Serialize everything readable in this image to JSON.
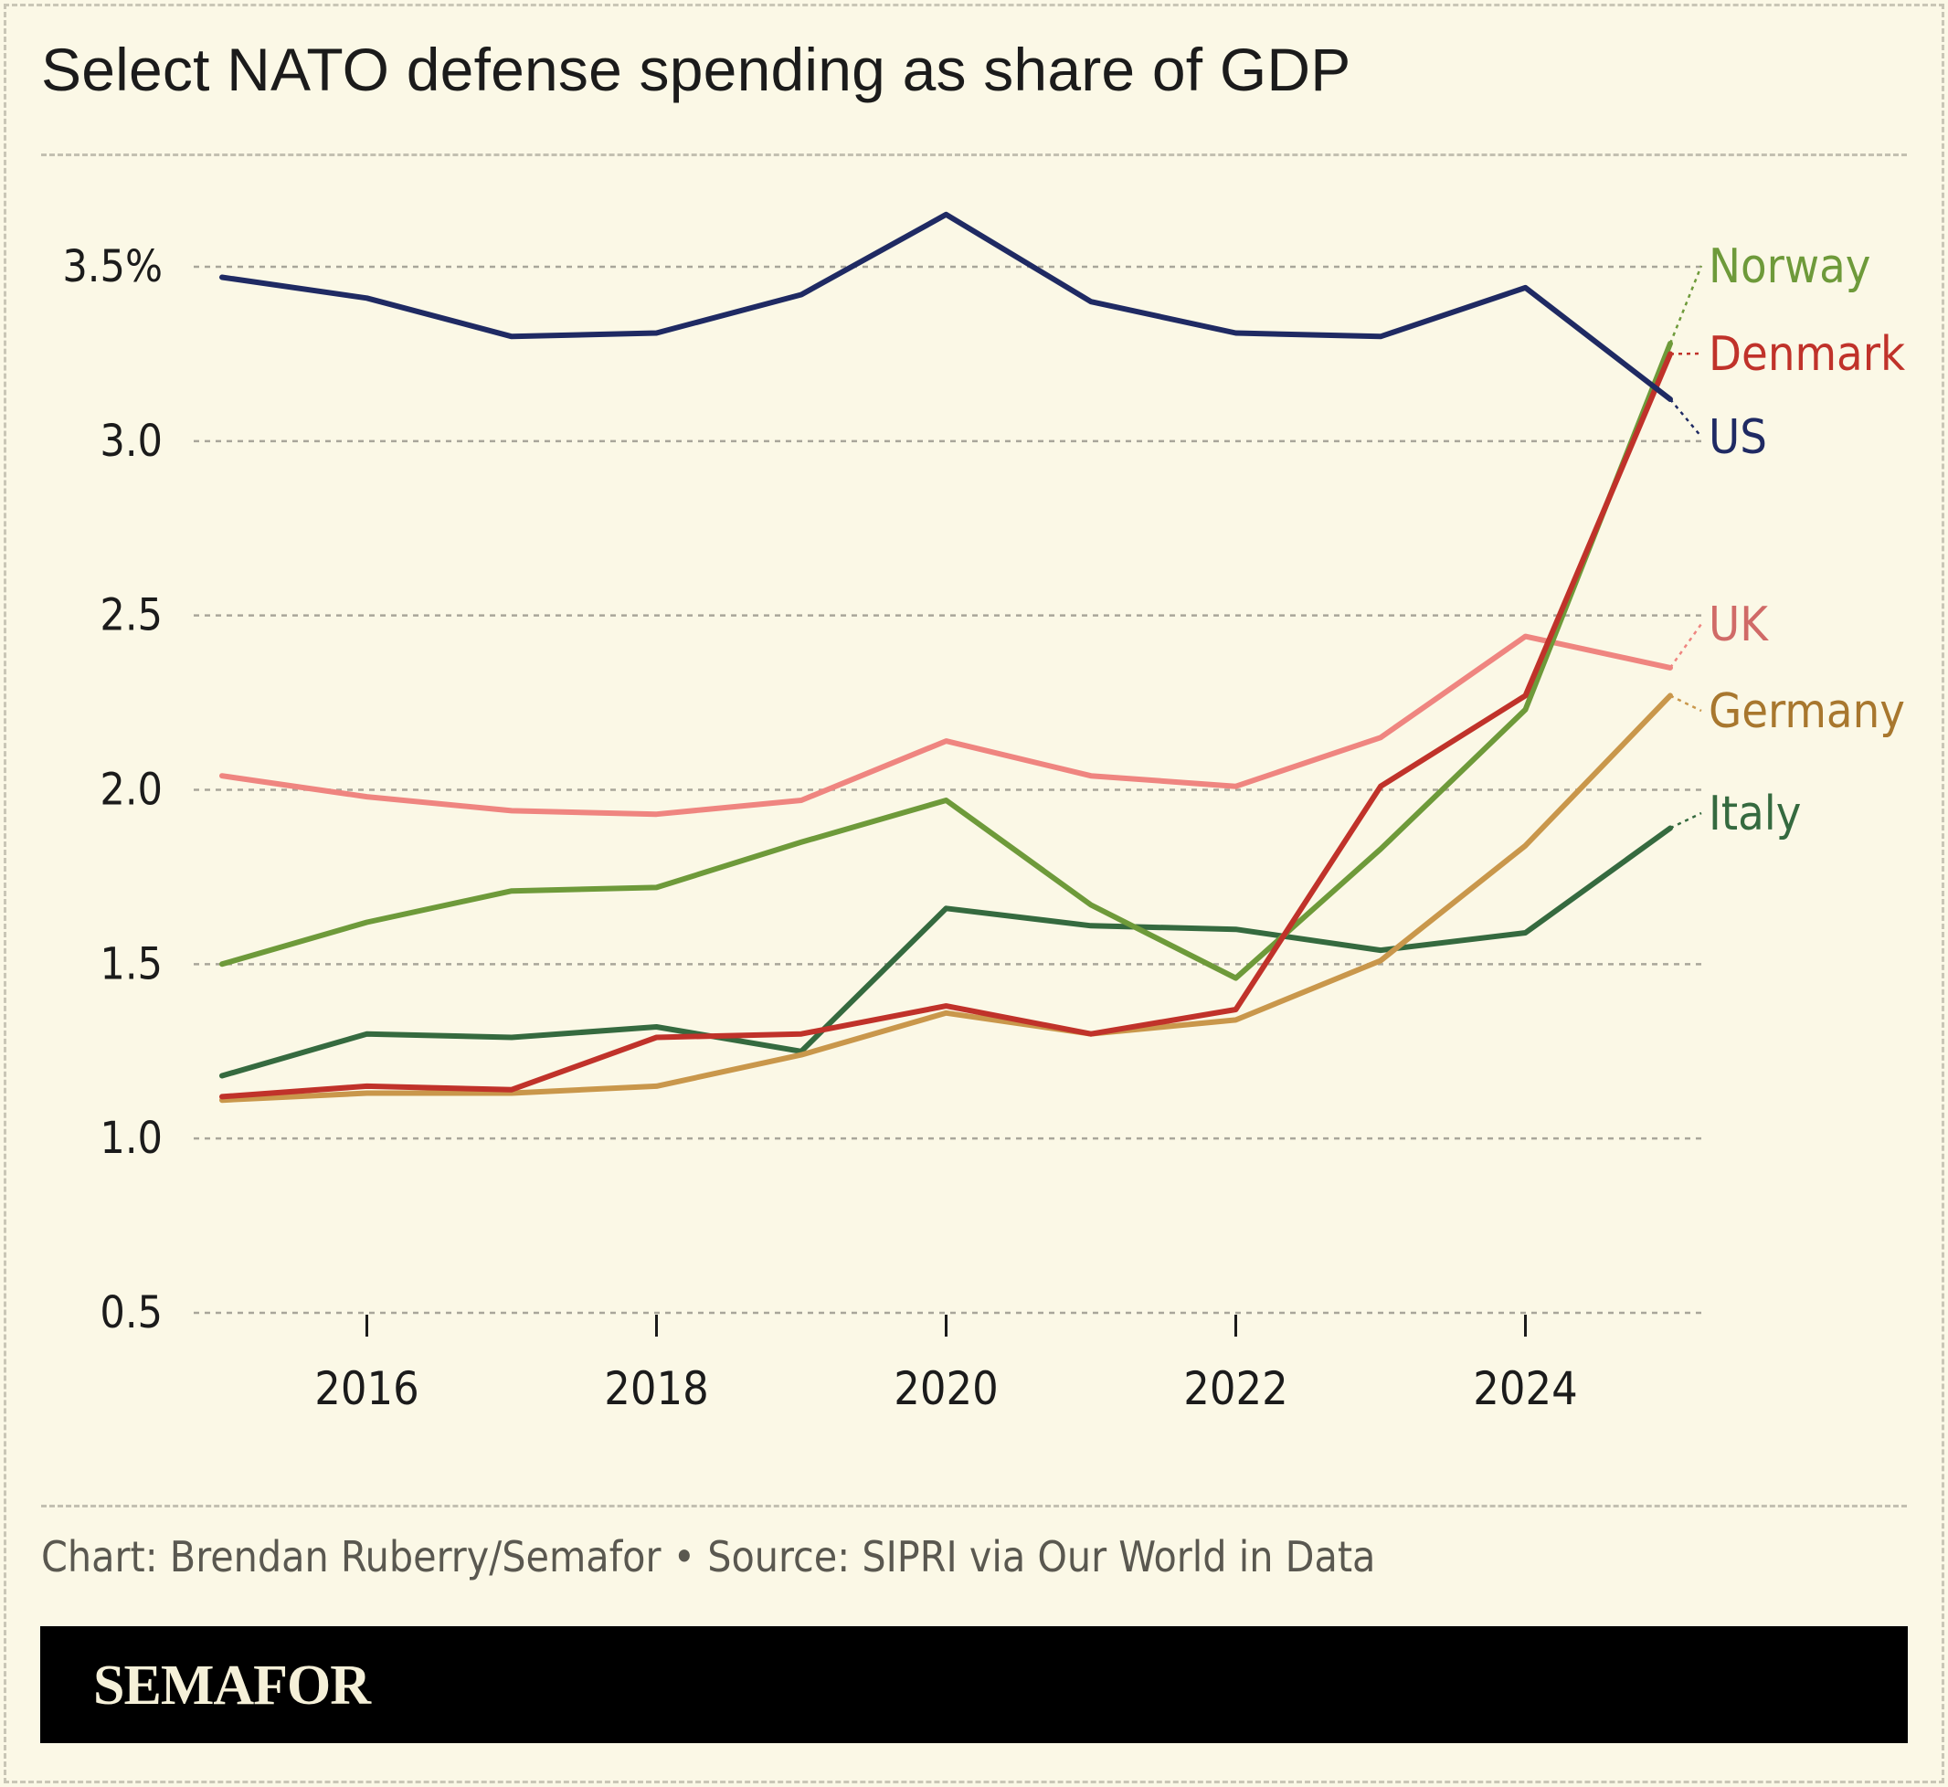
{
  "title": "Select NATO defense spending as share of GDP",
  "source_line": "Chart: Brendan Ruberry/Semafor • Source: SIPRI via Our World in Data",
  "brand": "SEMAFOR",
  "colors": {
    "background": "#fbf8e6",
    "US": "#1f2a63",
    "Norway": "#6e9a3a",
    "Denmark": "#c0322a",
    "UK": "#ef8580",
    "Germany": "#c9974b",
    "Italy": "#356a3f"
  },
  "chart_data": {
    "type": "line",
    "x": [
      2015,
      2016,
      2017,
      2018,
      2019,
      2020,
      2021,
      2022,
      2023,
      2024,
      2025
    ],
    "xlim": [
      2014,
      2025.2
    ],
    "ylim": [
      0.5,
      3.5
    ],
    "y_ticks": [
      {
        "value": 0.5,
        "label": "0.5"
      },
      {
        "value": 1.0,
        "label": "1.0"
      },
      {
        "value": 1.5,
        "label": "1.5"
      },
      {
        "value": 2.0,
        "label": "2.0"
      },
      {
        "value": 2.5,
        "label": "2.5"
      },
      {
        "value": 3.0,
        "label": "3.0"
      },
      {
        "value": 3.5,
        "label": "3.5%"
      }
    ],
    "x_ticks": [
      {
        "value": 2016,
        "label": "2016"
      },
      {
        "value": 2018,
        "label": "2018"
      },
      {
        "value": 2020,
        "label": "2020"
      },
      {
        "value": 2022,
        "label": "2022"
      },
      {
        "value": 2024,
        "label": "2024"
      }
    ],
    "grid": true,
    "legend": "direct labels at right end of lines",
    "series": [
      {
        "name": "Italy",
        "values": [
          1.18,
          1.3,
          1.29,
          1.32,
          1.25,
          1.66,
          1.61,
          1.6,
          1.54,
          1.59,
          1.89
        ]
      },
      {
        "name": "Germany",
        "values": [
          1.11,
          1.13,
          1.13,
          1.15,
          1.24,
          1.36,
          1.3,
          1.34,
          1.51,
          1.84,
          2.27
        ]
      },
      {
        "name": "UK",
        "values": [
          2.04,
          1.98,
          1.94,
          1.93,
          1.97,
          2.14,
          2.04,
          2.01,
          2.15,
          2.44,
          2.35
        ]
      },
      {
        "name": "Norway",
        "values": [
          1.5,
          1.62,
          1.71,
          1.72,
          1.85,
          1.97,
          1.67,
          1.46,
          1.83,
          2.23,
          3.28
        ]
      },
      {
        "name": "Denmark",
        "values": [
          1.12,
          1.15,
          1.14,
          1.29,
          1.3,
          1.38,
          1.3,
          1.37,
          2.01,
          2.27,
          3.25
        ]
      },
      {
        "name": "US",
        "values": [
          3.47,
          3.41,
          3.3,
          3.31,
          3.42,
          3.65,
          3.4,
          3.31,
          3.3,
          3.44,
          3.12
        ]
      }
    ],
    "end_labels": [
      "Norway",
      "Denmark",
      "US",
      "UK",
      "Germany",
      "Italy"
    ]
  }
}
